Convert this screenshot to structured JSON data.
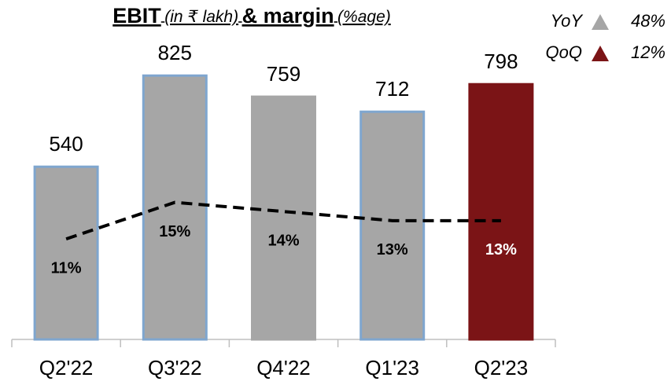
{
  "chart_data": {
    "type": "bar_line",
    "title_parts": [
      "EBIT",
      "(in ₹ lakh)",
      "& margin",
      "(%age)"
    ],
    "categories": [
      "Q2'22",
      "Q3'22",
      "Q4'22",
      "Q1'23",
      "Q2'23"
    ],
    "series": [
      {
        "type": "bar",
        "values": [
          540,
          825,
          759,
          712,
          798
        ],
        "colors": [
          "#a6a6a6",
          "#a6a6a6",
          "#a6a6a6",
          "#a6a6a6",
          "#7b1416"
        ],
        "edgecolors": [
          "#7fa6cf",
          "#7fa6cf",
          "#a6a6a6",
          "#7fa6cf",
          "#7b1416"
        ]
      },
      {
        "type": "line",
        "axis": "y2",
        "values": [
          11,
          15,
          14,
          13,
          13
        ],
        "value_labels": [
          "11%",
          "15%",
          "14%",
          "13%",
          "13%"
        ],
        "color": "#000000",
        "dashed": true,
        "label_colors": [
          "#000000",
          "#000000",
          "#000000",
          "#000000",
          "#ffffff"
        ]
      }
    ],
    "ylim": [
      0,
      1000
    ],
    "y2lim": [
      0,
      35
    ],
    "growth": [
      {
        "label": "YoY",
        "value": 48,
        "value_label": "48%",
        "color": "#a6a6a6"
      },
      {
        "label": "QoQ",
        "value": 12,
        "value_label": "12%",
        "color": "#7b1416"
      }
    ]
  }
}
